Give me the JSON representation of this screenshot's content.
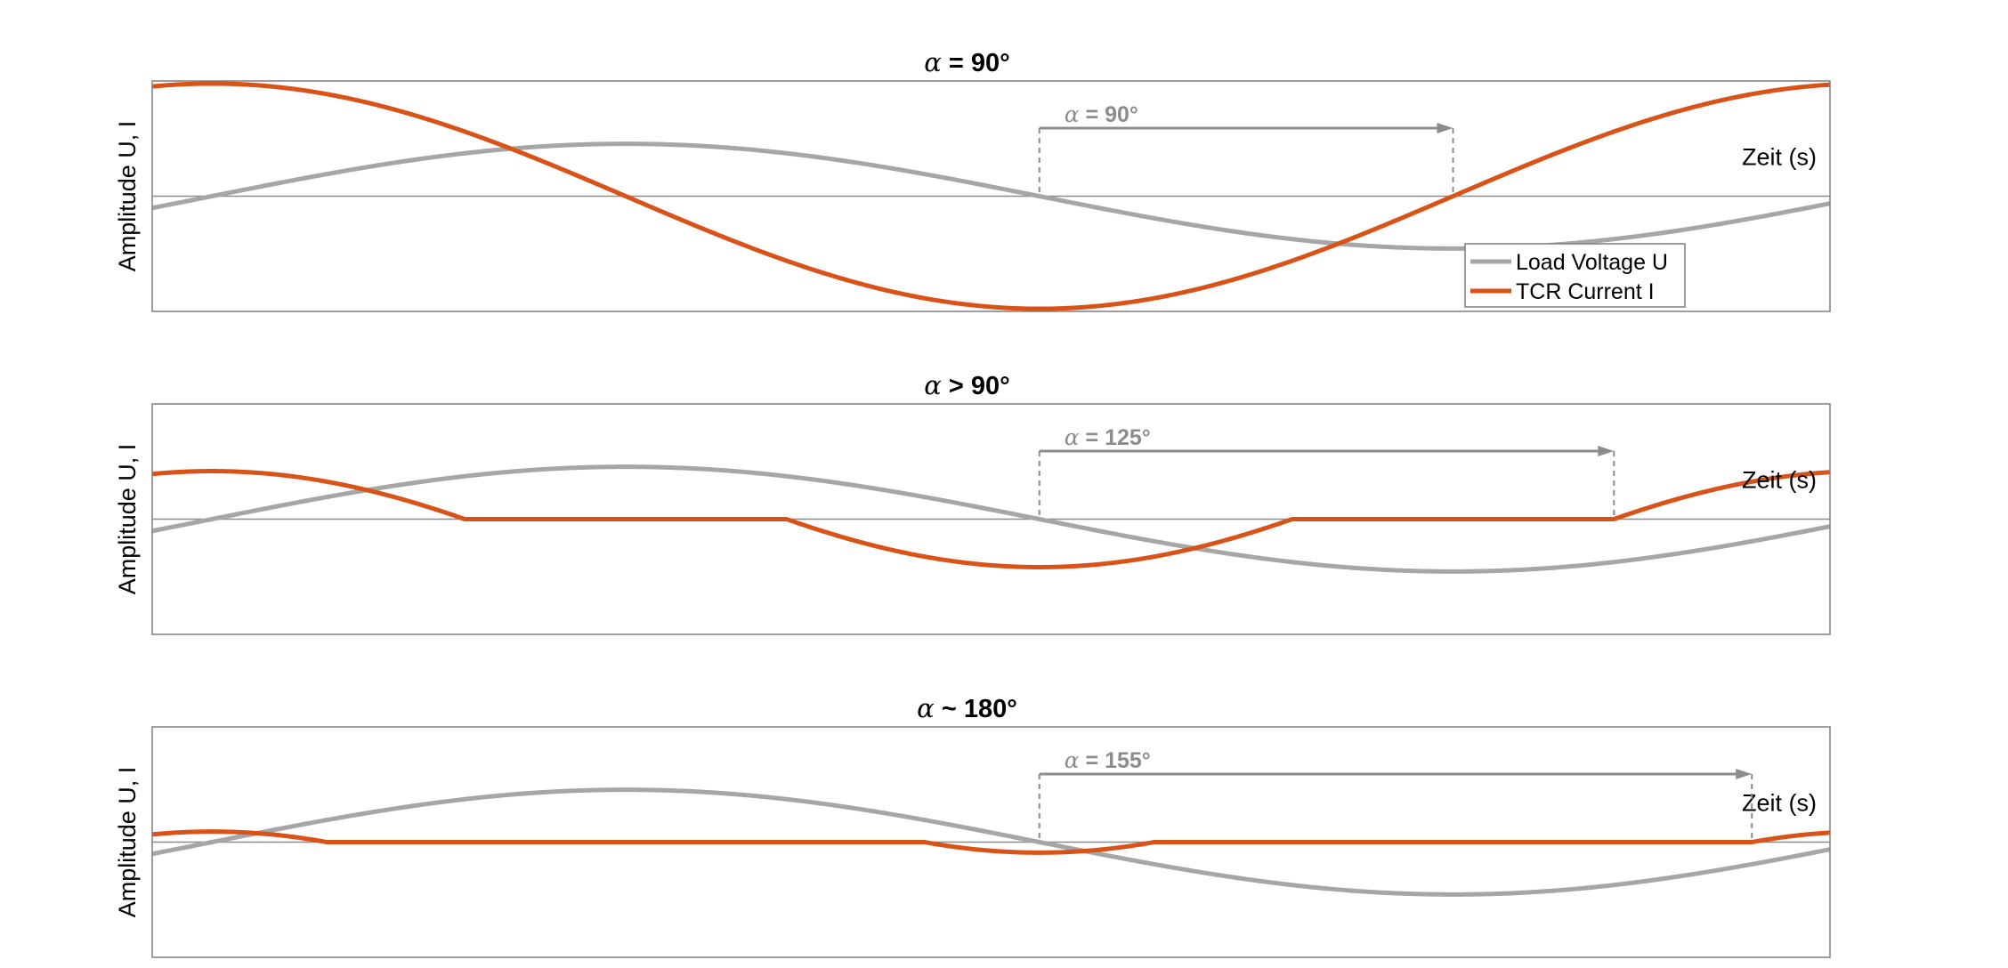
{
  "colors": {
    "voltage": "#a6a6a6",
    "current": "#d95319",
    "axis": "#7f7f7f",
    "annotation": "#8c8c8c",
    "zero_line": "#8c8c8c"
  },
  "chart_data": [
    {
      "type": "line",
      "title_symbol": "α",
      "title": " = 90°",
      "xlabel": "Zeit (s)",
      "ylabel": "Amplitude U, I",
      "xlim": [
        -13,
        352
      ],
      "ylim": [
        -2.2,
        2.2
      ],
      "grid": false,
      "legend_position": "bottom-right",
      "firing_angle_deg": 90,
      "annotation": {
        "symbol": "α",
        "text": " = 90°",
        "start_deg": 180,
        "end_deg": 270
      },
      "series": [
        {
          "name": "Load Voltage U",
          "function": "sin",
          "amplitude": 1.0
        },
        {
          "name": "TCR Current I",
          "function": "tcr_current",
          "amplitude": 2.15
        }
      ]
    },
    {
      "type": "line",
      "title_symbol": "α",
      "title": " > 90°",
      "xlabel": "Zeit (s)",
      "ylabel": "Amplitude U, I",
      "xlim": [
        -13,
        352
      ],
      "ylim": [
        -2.2,
        2.2
      ],
      "grid": false,
      "firing_angle_deg": 125,
      "annotation": {
        "symbol": "α",
        "text": " = 125°",
        "start_deg": 180,
        "end_deg": 305
      },
      "series": [
        {
          "name": "Load Voltage U",
          "function": "sin",
          "amplitude": 1.0
        },
        {
          "name": "TCR Current I",
          "function": "tcr_current",
          "amplitude": 2.15
        }
      ]
    },
    {
      "type": "line",
      "title_symbol": "α",
      "title": " ~ 180°",
      "xlabel": "Zeit (s)",
      "ylabel": "Amplitude U, I",
      "xlim": [
        -13,
        352
      ],
      "ylim": [
        -2.2,
        2.2
      ],
      "grid": false,
      "firing_angle_deg": 155,
      "annotation": {
        "symbol": "α",
        "text": " = 155°",
        "start_deg": 180,
        "end_deg": 335
      },
      "series": [
        {
          "name": "Load Voltage U",
          "function": "sin",
          "amplitude": 1.0
        },
        {
          "name": "TCR Current I",
          "function": "tcr_current",
          "amplitude": 2.15
        }
      ]
    }
  ]
}
